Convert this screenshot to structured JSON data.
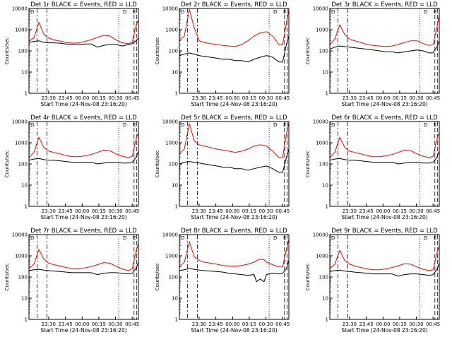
{
  "figure": {
    "background": "#ffffff",
    "axis_color": "#000000"
  },
  "chart_data": [
    {
      "type": "line",
      "title": "Det 1r BLACK = Events, RED = LLD",
      "xlabel": "Start Time (24-Nov-08 23:16:20)",
      "ylabel": "Counts/sec",
      "corner_labels": [
        "D",
        "D",
        "E"
      ],
      "x_tick_labels": [
        "23:30",
        "23:45",
        "00:00",
        "00:15",
        "00:30",
        "00:45"
      ],
      "y_tick_labels": [
        "1",
        "10",
        "100",
        "1000",
        "10000"
      ],
      "y_scale": "log",
      "ylim": [
        1,
        10000
      ],
      "series": [
        {
          "color": "#ff0000",
          "x": [
            0,
            4,
            8,
            12,
            16,
            20,
            25,
            30,
            35,
            40,
            45,
            50,
            55,
            60,
            65,
            70,
            75,
            80,
            83,
            86,
            88
          ],
          "y": [
            300,
            400,
            2200,
            600,
            400,
            330,
            290,
            250,
            230,
            240,
            280,
            340,
            430,
            550,
            500,
            330,
            240,
            220,
            260,
            1500,
            3000
          ]
        },
        {
          "color": "#000000",
          "x": [
            0,
            4,
            8,
            12,
            16,
            20,
            25,
            30,
            35,
            40,
            45,
            50,
            55,
            60,
            65,
            70,
            75,
            80,
            83,
            86,
            88
          ],
          "y": [
            250,
            280,
            300,
            250,
            240,
            240,
            230,
            210,
            200,
            200,
            210,
            210,
            150,
            180,
            200,
            200,
            170,
            200,
            220,
            300,
            400
          ]
        }
      ]
    },
    {
      "type": "line",
      "title": "Det 2r BLACK = Events, RED = LLD",
      "xlabel": "Start Time (24-Nov-08 23:16:20)",
      "ylabel": "Counts/sec",
      "corner_labels": [
        "D",
        "D",
        "E"
      ],
      "x_tick_labels": [
        "23:30",
        "23:45",
        "00:00",
        "00:15",
        "00:30",
        "00:45"
      ],
      "y_tick_labels": [
        "1",
        "10",
        "100",
        "1000",
        "10000"
      ],
      "y_scale": "log",
      "ylim": [
        1,
        10000
      ],
      "series": [
        {
          "color": "#ff0000",
          "x": [
            0,
            4,
            8,
            12,
            16,
            20,
            25,
            30,
            35,
            40,
            45,
            50,
            55,
            60,
            65,
            70,
            75,
            80,
            83,
            86,
            88
          ],
          "y": [
            300,
            500,
            9000,
            1200,
            300,
            250,
            220,
            200,
            180,
            170,
            160,
            200,
            300,
            500,
            700,
            800,
            500,
            200,
            200,
            2000,
            9000
          ]
        },
        {
          "color": "#000000",
          "x": [
            0,
            4,
            8,
            12,
            16,
            20,
            25,
            30,
            35,
            40,
            45,
            50,
            55,
            60,
            65,
            70,
            75,
            80,
            83,
            86,
            88
          ],
          "y": [
            60,
            70,
            80,
            70,
            60,
            55,
            50,
            45,
            40,
            40,
            35,
            35,
            30,
            40,
            50,
            60,
            50,
            30,
            30,
            200,
            500
          ]
        }
      ]
    },
    {
      "type": "line",
      "title": "Det 3r BLACK = Events, RED = LLD",
      "xlabel": "Start Time (24-Nov-08 23:16:20)",
      "ylabel": "Counts/sec",
      "corner_labels": [
        "D",
        "D",
        "E"
      ],
      "x_tick_labels": [
        "23:30",
        "23:45",
        "00:00",
        "00:15",
        "00:30",
        "00:45"
      ],
      "y_tick_labels": [
        "1",
        "10",
        "100",
        "1000",
        "10000"
      ],
      "y_scale": "log",
      "ylim": [
        1,
        10000
      ],
      "series": [
        {
          "color": "#ff0000",
          "x": [
            0,
            4,
            8,
            12,
            16,
            20,
            25,
            30,
            35,
            40,
            45,
            50,
            55,
            60,
            65,
            70,
            75,
            80,
            83,
            86,
            88
          ],
          "y": [
            200,
            350,
            1700,
            600,
            350,
            300,
            250,
            200,
            180,
            170,
            160,
            170,
            200,
            250,
            300,
            300,
            220,
            180,
            200,
            1200,
            5000
          ]
        },
        {
          "color": "#000000",
          "x": [
            0,
            4,
            8,
            12,
            16,
            20,
            25,
            30,
            35,
            40,
            45,
            50,
            55,
            60,
            65,
            70,
            75,
            80,
            83,
            86,
            88
          ],
          "y": [
            120,
            150,
            170,
            160,
            150,
            140,
            130,
            120,
            110,
            100,
            90,
            90,
            80,
            90,
            100,
            110,
            100,
            80,
            80,
            150,
            300
          ]
        }
      ]
    },
    {
      "type": "line",
      "title": "Det 4r BLACK = Events, RED = LLD",
      "xlabel": "Start Time (24-Nov-08 23:16:20)",
      "ylabel": "Counts/sec",
      "corner_labels": [
        "D",
        "D",
        "E"
      ],
      "x_tick_labels": [
        "23:30",
        "23:45",
        "00:00",
        "00:15",
        "00:30",
        "00:45"
      ],
      "y_tick_labels": [
        "1",
        "10",
        "100",
        "1000",
        "10000"
      ],
      "y_scale": "log",
      "ylim": [
        1,
        10000
      ],
      "series": [
        {
          "color": "#ff0000",
          "x": [
            0,
            4,
            8,
            12,
            16,
            20,
            25,
            30,
            35,
            40,
            45,
            50,
            55,
            60,
            65,
            70,
            75,
            80,
            83,
            86,
            88
          ],
          "y": [
            200,
            350,
            1800,
            600,
            400,
            350,
            300,
            250,
            220,
            220,
            240,
            280,
            350,
            450,
            420,
            300,
            230,
            200,
            230,
            1400,
            3000
          ]
        },
        {
          "color": "#000000",
          "x": [
            0,
            4,
            8,
            12,
            16,
            20,
            25,
            30,
            35,
            40,
            45,
            50,
            55,
            60,
            65,
            70,
            75,
            80,
            83,
            86,
            88
          ],
          "y": [
            150,
            170,
            180,
            160,
            150,
            150,
            140,
            130,
            120,
            120,
            120,
            120,
            100,
            110,
            120,
            120,
            110,
            110,
            120,
            200,
            400
          ]
        }
      ]
    },
    {
      "type": "line",
      "title": "Det 5r BLACK = Events, RED = LLD",
      "xlabel": "Start Time (24-Nov-08 23:16:20)",
      "ylabel": "Counts/sec",
      "corner_labels": [
        "D",
        "D",
        "E"
      ],
      "x_tick_labels": [
        "23:30",
        "23:45",
        "00:00",
        "00:15",
        "00:30",
        "00:45"
      ],
      "y_tick_labels": [
        "1",
        "10",
        "100",
        "1000",
        "10000"
      ],
      "y_scale": "log",
      "ylim": [
        1,
        10000
      ],
      "series": [
        {
          "color": "#ff0000",
          "x": [
            0,
            4,
            8,
            12,
            16,
            20,
            25,
            30,
            35,
            40,
            45,
            50,
            55,
            60,
            65,
            70,
            75,
            80,
            83,
            86,
            88
          ],
          "y": [
            300,
            500,
            8000,
            1200,
            800,
            700,
            600,
            500,
            450,
            400,
            350,
            400,
            500,
            700,
            800,
            700,
            400,
            200,
            200,
            2500,
            9000
          ]
        },
        {
          "color": "#000000",
          "x": [
            0,
            4,
            8,
            12,
            16,
            20,
            25,
            30,
            35,
            40,
            45,
            50,
            55,
            60,
            65,
            70,
            75,
            80,
            83,
            86,
            88
          ],
          "y": [
            100,
            120,
            130,
            120,
            110,
            100,
            90,
            80,
            70,
            70,
            60,
            60,
            50,
            60,
            70,
            80,
            60,
            40,
            40,
            200,
            500
          ]
        }
      ]
    },
    {
      "type": "line",
      "title": "Det 6r BLACK = Events, RED = LLD",
      "xlabel": "Start Time (24-Nov-08 23:16:20)",
      "ylabel": "Counts/sec",
      "corner_labels": [
        "D",
        "D",
        "E"
      ],
      "x_tick_labels": [
        "23:30",
        "23:45",
        "00:00",
        "00:15",
        "00:30",
        "00:45"
      ],
      "y_tick_labels": [
        "1",
        "10",
        "100",
        "1000",
        "10000"
      ],
      "y_scale": "log",
      "ylim": [
        1,
        10000
      ],
      "series": [
        {
          "color": "#ff0000",
          "x": [
            0,
            4,
            8,
            12,
            16,
            20,
            25,
            30,
            35,
            40,
            45,
            50,
            55,
            60,
            65,
            70,
            75,
            80,
            83,
            86,
            88
          ],
          "y": [
            200,
            350,
            1800,
            600,
            400,
            350,
            300,
            250,
            220,
            220,
            240,
            280,
            350,
            450,
            420,
            300,
            230,
            200,
            230,
            1400,
            3000
          ]
        },
        {
          "color": "#000000",
          "x": [
            0,
            4,
            8,
            12,
            16,
            20,
            25,
            30,
            35,
            40,
            45,
            50,
            55,
            60,
            65,
            70,
            75,
            80,
            83,
            86,
            88
          ],
          "y": [
            150,
            170,
            180,
            160,
            150,
            150,
            140,
            130,
            120,
            120,
            120,
            120,
            100,
            110,
            120,
            120,
            110,
            110,
            120,
            200,
            400
          ]
        }
      ]
    },
    {
      "type": "line",
      "title": "Det 7r BLACK = Events, RED = LLD",
      "xlabel": "Start Time (24-Nov-08 23:16:20)",
      "ylabel": "Counts/sec",
      "corner_labels": [
        "D",
        "D",
        "E"
      ],
      "x_tick_labels": [
        "23:30",
        "23:45",
        "00:00",
        "00:15",
        "00:30",
        "00:45"
      ],
      "y_tick_labels": [
        "1",
        "10",
        "100",
        "1000",
        "10000"
      ],
      "y_scale": "log",
      "ylim": [
        1,
        10000
      ],
      "series": [
        {
          "color": "#ff0000",
          "x": [
            0,
            4,
            8,
            12,
            16,
            20,
            25,
            30,
            35,
            40,
            45,
            50,
            55,
            60,
            65,
            70,
            75,
            80,
            83,
            86,
            88
          ],
          "y": [
            250,
            400,
            2000,
            700,
            450,
            380,
            330,
            280,
            250,
            250,
            270,
            310,
            380,
            480,
            450,
            320,
            240,
            200,
            240,
            1500,
            4000
          ]
        },
        {
          "color": "#000000",
          "x": [
            0,
            4,
            8,
            12,
            16,
            20,
            25,
            30,
            35,
            40,
            45,
            50,
            55,
            60,
            65,
            70,
            75,
            80,
            83,
            86,
            88
          ],
          "y": [
            200,
            220,
            230,
            210,
            200,
            190,
            180,
            170,
            160,
            160,
            160,
            160,
            130,
            150,
            160,
            160,
            150,
            140,
            150,
            250,
            500
          ]
        }
      ]
    },
    {
      "type": "line",
      "title": "Det 8r BLACK = Events, RED = LLD",
      "xlabel": "Start Time (24-Nov-08 23:16:20)",
      "ylabel": "Counts/sec",
      "corner_labels": [
        "D",
        "D",
        "E"
      ],
      "x_tick_labels": [
        "23:30",
        "23:45",
        "00:00",
        "00:15",
        "00:30",
        "00:45"
      ],
      "y_tick_labels": [
        "1",
        "10",
        "100",
        "1000",
        "10000"
      ],
      "y_scale": "log",
      "ylim": [
        1,
        10000
      ],
      "series": [
        {
          "color": "#ff0000",
          "x": [
            0,
            4,
            8,
            12,
            16,
            20,
            25,
            30,
            35,
            40,
            45,
            50,
            55,
            60,
            62,
            65,
            68,
            70,
            75,
            80,
            83,
            86,
            88
          ],
          "y": [
            300,
            500,
            4500,
            900,
            600,
            500,
            450,
            400,
            350,
            330,
            320,
            350,
            400,
            500,
            600,
            700,
            650,
            500,
            380,
            300,
            300,
            2000,
            6000
          ]
        },
        {
          "color": "#000000",
          "x": [
            0,
            4,
            8,
            12,
            16,
            20,
            25,
            30,
            35,
            40,
            45,
            50,
            55,
            60,
            62,
            65,
            68,
            70,
            75,
            80,
            83,
            86,
            88
          ],
          "y": [
            200,
            220,
            250,
            230,
            210,
            200,
            190,
            180,
            170,
            150,
            140,
            130,
            120,
            130,
            60,
            80,
            60,
            130,
            150,
            140,
            150,
            250,
            600
          ]
        }
      ]
    },
    {
      "type": "line",
      "title": "Det 9r BLACK = Events, RED = LLD",
      "xlabel": "Start Time (24-Nov-08 23:16:20)",
      "ylabel": "Counts/sec",
      "corner_labels": [
        "D",
        "D",
        "E"
      ],
      "x_tick_labels": [
        "23:30",
        "23:45",
        "00:00",
        "00:15",
        "00:30",
        "00:45"
      ],
      "y_tick_labels": [
        "1",
        "10",
        "100",
        "1000",
        "10000"
      ],
      "y_scale": "log",
      "ylim": [
        1,
        10000
      ],
      "series": [
        {
          "color": "#ff0000",
          "x": [
            0,
            4,
            8,
            12,
            16,
            20,
            25,
            30,
            35,
            40,
            45,
            50,
            55,
            60,
            65,
            70,
            75,
            80,
            83,
            86,
            88
          ],
          "y": [
            250,
            400,
            1800,
            600,
            400,
            330,
            280,
            240,
            220,
            220,
            240,
            280,
            340,
            420,
            400,
            300,
            230,
            200,
            220,
            1300,
            3000
          ]
        },
        {
          "color": "#000000",
          "x": [
            0,
            4,
            8,
            12,
            16,
            20,
            25,
            30,
            35,
            40,
            45,
            50,
            55,
            60,
            65,
            70,
            75,
            80,
            83,
            86,
            88
          ],
          "y": [
            180,
            200,
            210,
            190,
            180,
            170,
            160,
            150,
            140,
            140,
            140,
            140,
            110,
            130,
            140,
            140,
            130,
            120,
            130,
            220,
            450
          ]
        }
      ]
    }
  ]
}
